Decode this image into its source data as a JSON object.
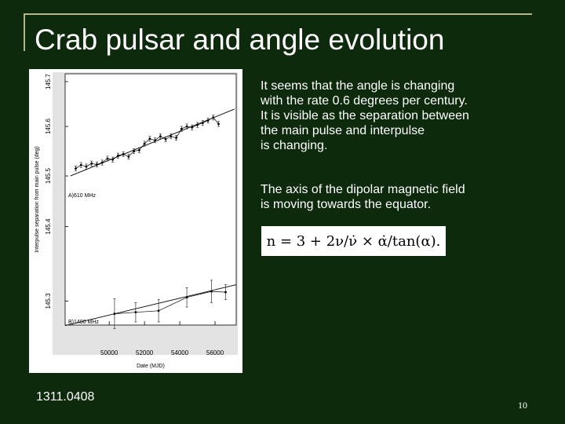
{
  "slide": {
    "title": "Crab pulsar and angle evolution",
    "paragraph1": "It seems that the angle is changing\nwith the rate 0.6 degrees per century.\nIt is visible as the separation between\nthe main pulse and interpulse\nis changing.",
    "paragraph2": "The axis of the dipolar magnetic field\nis moving towards the equator.",
    "formula": "n = 3 + 2ν/ν̇ × α̇/tan(α).",
    "reference": "1311.0408",
    "page_number": "10"
  },
  "chart_data": {
    "type": "scatter",
    "xlabel": "Date (MJD)",
    "ylabel": "Interpulse separation from main pulse (deg)",
    "x_ticks": [
      "50000",
      "52000",
      "54000",
      "56000"
    ],
    "y_ticks": [
      "145.3",
      "145.4",
      "145.5",
      "145.6",
      "145.7"
    ],
    "xlim": [
      47500,
      57200
    ],
    "series": [
      {
        "name": "A)610 MHz",
        "ylim": [
          145.462,
          145.7
        ],
        "x": [
          48100,
          48400,
          48700,
          49000,
          49300,
          49600,
          49900,
          50200,
          50500,
          50800,
          51100,
          51400,
          51700,
          52000,
          52300,
          52600,
          52900,
          53200,
          53500,
          53800,
          54100,
          54400,
          54700,
          55000,
          55300,
          55600,
          55900,
          56200
        ],
        "y": [
          145.515,
          145.522,
          145.519,
          145.525,
          145.523,
          145.527,
          145.535,
          145.533,
          145.541,
          145.544,
          145.539,
          145.55,
          145.552,
          145.565,
          145.575,
          145.572,
          145.58,
          145.574,
          145.58,
          145.577,
          145.595,
          145.6,
          145.598,
          145.603,
          145.607,
          145.612,
          145.618,
          145.605
        ],
        "fit": {
          "x": [
            47800,
            57100
          ],
          "y": [
            145.5,
            145.635
          ]
        }
      },
      {
        "name": "B)1400 MHz",
        "ylim": [
          145.272,
          145.427
        ],
        "x": [
          50300,
          51500,
          52800,
          54400,
          55800,
          56600
        ],
        "y": [
          145.283,
          145.285,
          145.287,
          145.305,
          145.313,
          145.312
        ],
        "err": [
          0.02,
          0.013,
          0.015,
          0.013,
          0.015,
          0.01
        ],
        "fit": {
          "x": [
            47500,
            57200
          ],
          "y": [
            145.267,
            145.322
          ]
        }
      }
    ]
  }
}
